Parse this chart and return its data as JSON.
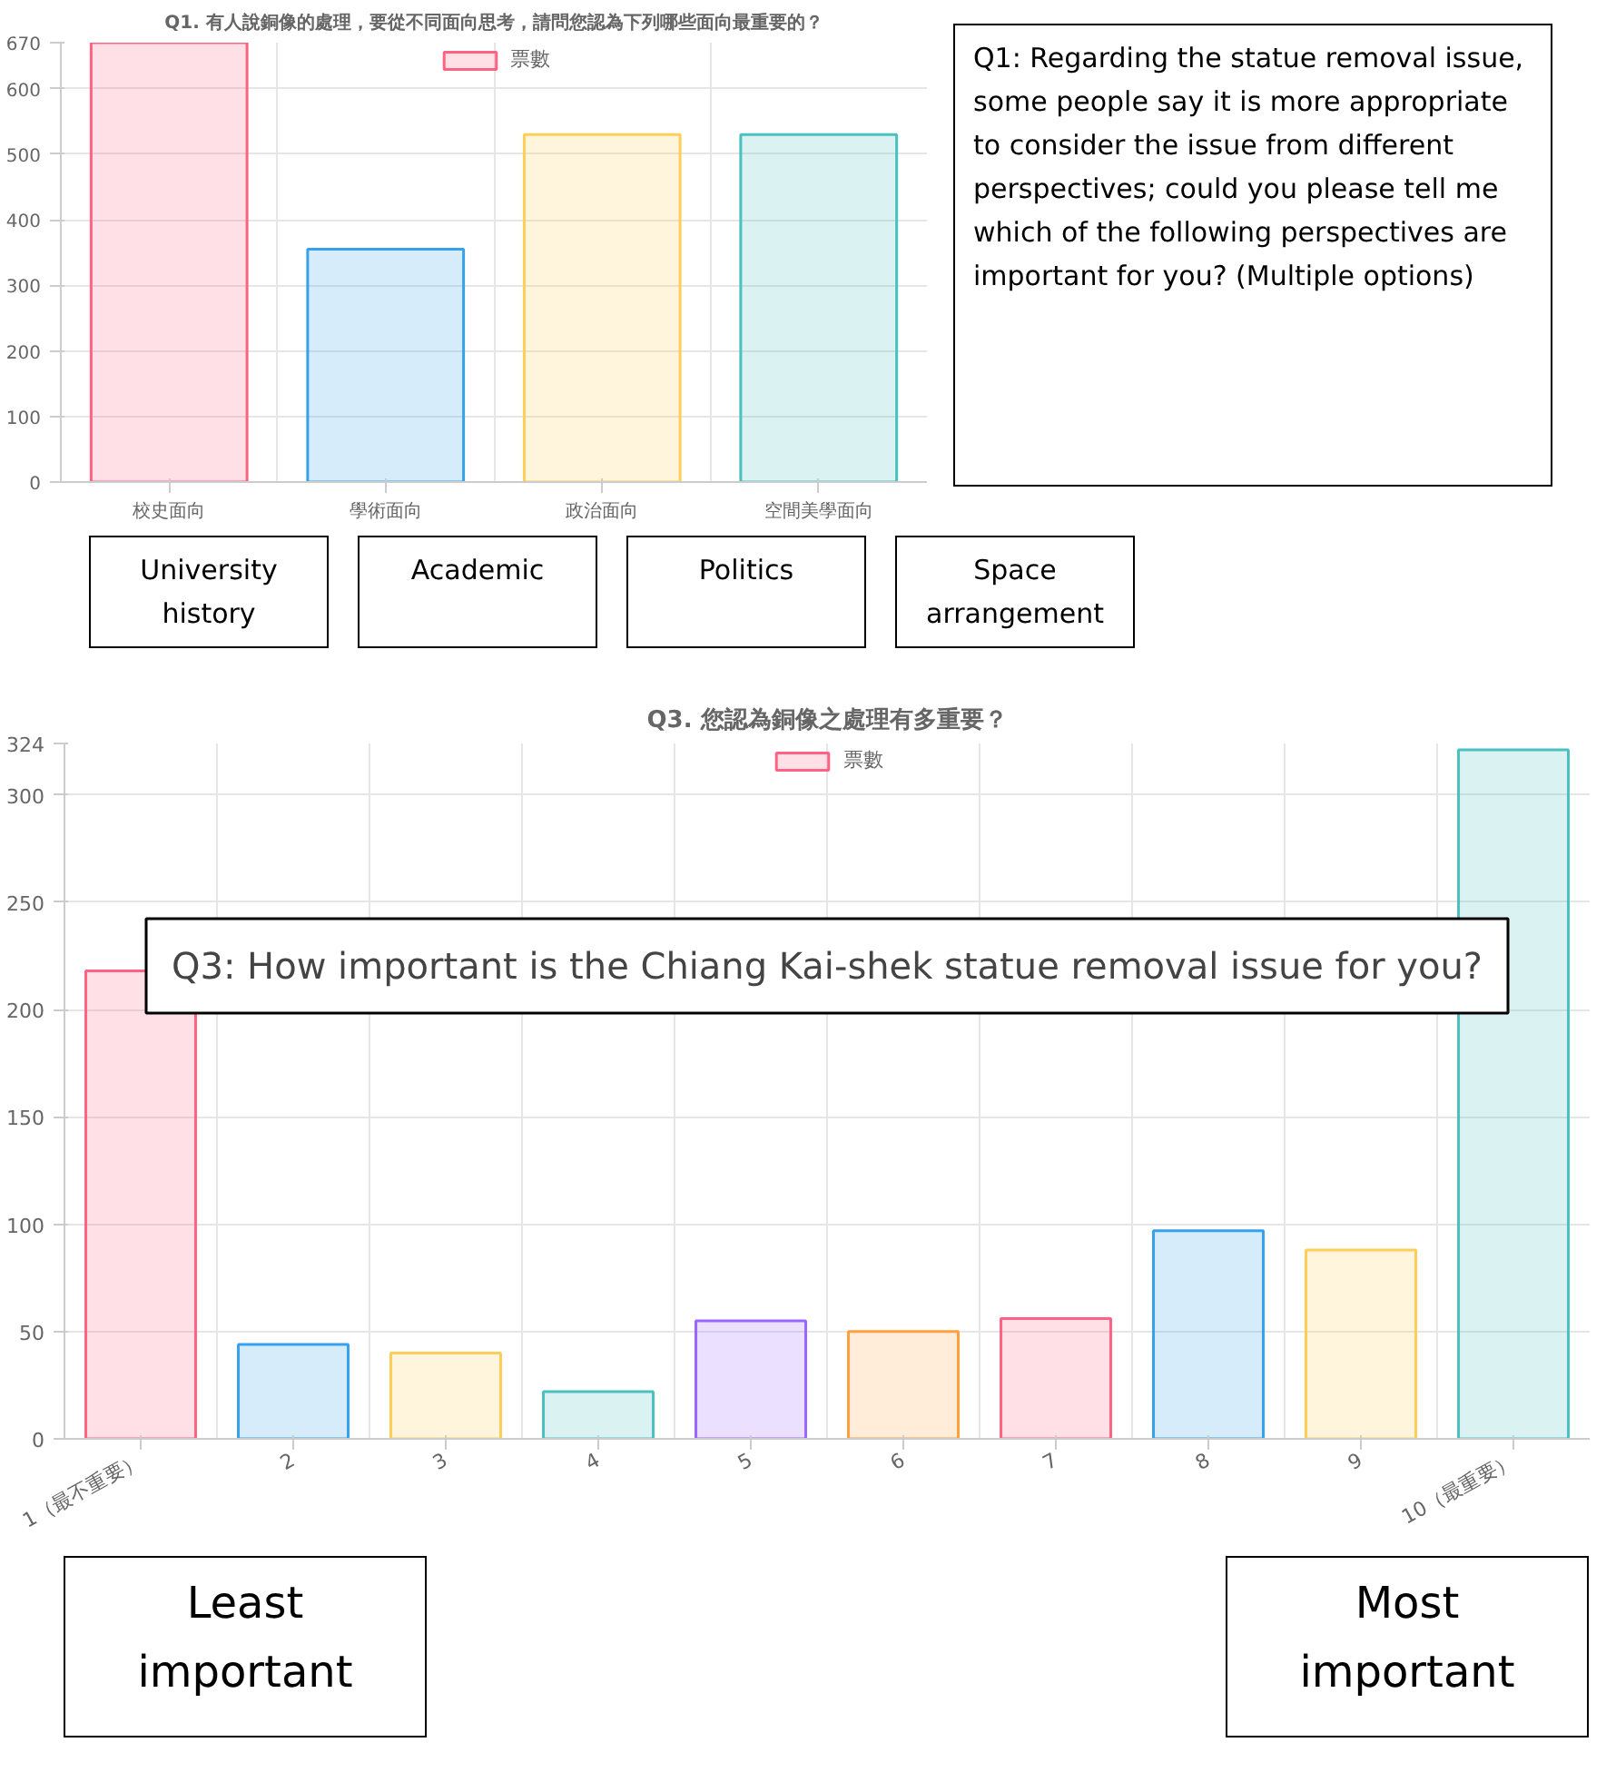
{
  "chart_data": [
    {
      "type": "bar",
      "title": "Q1. 有人說銅像的處理，要從不同面向思考，請問您認為下列哪些面向最重要的？",
      "categories": [
        "校史面向",
        "學術面向",
        "政治面向",
        "空間美學面向"
      ],
      "series": [
        {
          "name": "票數",
          "colors": [
            "#ff6384",
            "#36a2eb",
            "#ffce56",
            "#4bc0c0"
          ],
          "values": [
            670,
            355,
            530,
            530
          ]
        }
      ],
      "ylim": [
        0,
        670
      ],
      "yticks": [
        0,
        100,
        200,
        300,
        400,
        500,
        600,
        670
      ],
      "grid": true,
      "legend": "top",
      "annotations": [
        "Q1: Regarding the statue removal issue, some people say it is more appropriate to consider the issue from different perspectives; could you please tell me which of the following perspectives are important for you? (Multiple options)",
        "University history",
        "Academic",
        "Politics",
        "Space arrangement"
      ]
    },
    {
      "type": "bar",
      "title": "Q3. 您認為銅像之處理有多重要？",
      "categories": [
        "1（最不重要）",
        "2",
        "3",
        "4",
        "5",
        "6",
        "7",
        "8",
        "9",
        "10（最重要）"
      ],
      "series": [
        {
          "name": "票數",
          "colors": [
            "#ff6384",
            "#36a2eb",
            "#ffce56",
            "#4bc0c0",
            "#9966ff",
            "#ff9f40",
            "#ff6384",
            "#36a2eb",
            "#ffce56",
            "#4bc0c0"
          ],
          "values": [
            218,
            44,
            40,
            22,
            55,
            50,
            56,
            97,
            88,
            321
          ]
        }
      ],
      "ylim": [
        0,
        324
      ],
      "yticks": [
        0,
        50,
        100,
        150,
        200,
        250,
        300,
        324
      ],
      "grid": true,
      "legend": "top",
      "annotations": [
        "Q3: How important is the Chiang Kai-shek statue removal issue for you?",
        "Least important",
        "Most important"
      ]
    }
  ]
}
